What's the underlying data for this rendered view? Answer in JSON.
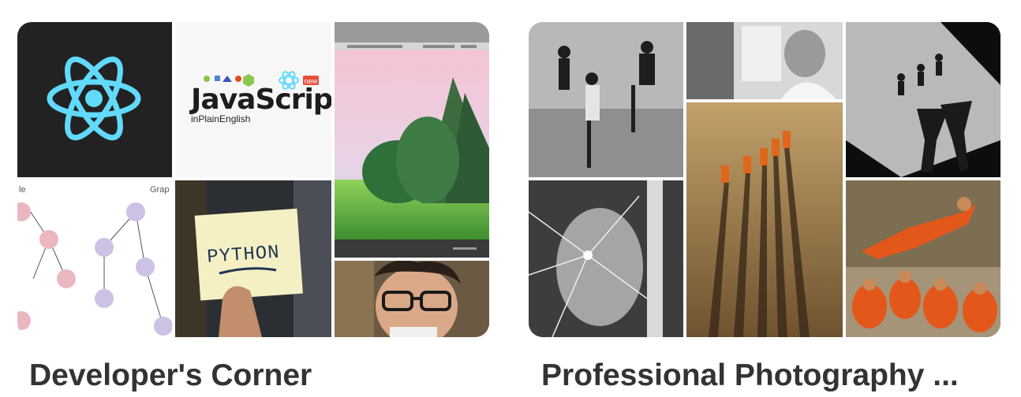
{
  "boards": [
    {
      "title": "Developer's Corner",
      "tiles": [
        {
          "name": "react-logo-image"
        },
        {
          "name": "javascript-in-plain-english-image",
          "wordmark": "JavaScript",
          "subtitle": "inPlainEnglish",
          "badge": "new"
        },
        {
          "name": "landscape-painting-screenshot-image"
        },
        {
          "name": "graph-diagram-image",
          "labels": [
            "le",
            "Grap"
          ]
        },
        {
          "name": "python-sticky-note-image",
          "note_text": "PYTHON"
        },
        {
          "name": "man-with-glasses-image"
        }
      ]
    },
    {
      "title": "Professional Photography ...",
      "tiles": [
        {
          "name": "children-dancing-photo"
        },
        {
          "name": "woman-at-desk-photo"
        },
        {
          "name": "shadows-on-wall-photo"
        },
        {
          "name": "boy-through-shattered-glass-photo"
        },
        {
          "name": "monks-walking-desert-photo"
        },
        {
          "name": "shaolin-monks-leaping-photo"
        }
      ]
    }
  ]
}
